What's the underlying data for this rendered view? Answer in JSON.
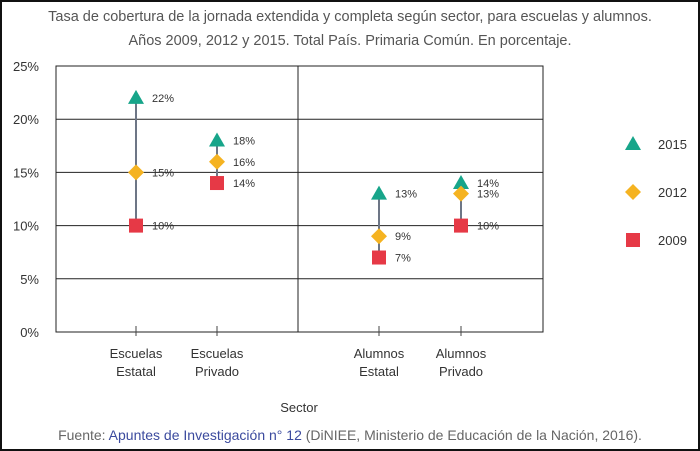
{
  "chart_data": {
    "type": "scatter",
    "title": "Tasa de cobertura de la jornada extendida y completa según sector, para escuelas y alumnos.",
    "subtitle": "Años 2009, 2012 y 2015. Total País. Primaria Común. En porcentaje.",
    "xlabel": "Sector",
    "ylabel": "",
    "ylim": [
      0,
      25
    ],
    "yticks": [
      "0%",
      "5%",
      "10%",
      "15%",
      "20%",
      "25%"
    ],
    "yticks_values": [
      0,
      5,
      10,
      15,
      20,
      25
    ],
    "grid": true,
    "legend_placement": "right",
    "categories": [
      [
        "Escuelas",
        "Estatal"
      ],
      [
        "Escuelas",
        "Privado"
      ],
      [
        "Alumnos",
        "Estatal"
      ],
      [
        "Alumnos",
        "Privado"
      ]
    ],
    "series": [
      {
        "name": "2015",
        "marker": "triangle",
        "color": "#17a58a",
        "values": [
          22,
          18,
          13,
          14
        ],
        "labels": [
          "22%",
          "18%",
          "13%",
          "14%"
        ]
      },
      {
        "name": "2012",
        "marker": "diamond",
        "color": "#f5b321",
        "values": [
          15,
          16,
          9,
          13
        ],
        "labels": [
          "15%",
          "16%",
          "9%",
          "13%"
        ]
      },
      {
        "name": "2009",
        "marker": "square",
        "color": "#e63946",
        "values": [
          10,
          14,
          7,
          10
        ],
        "labels": [
          "10%",
          "14%",
          "7%",
          "10%"
        ]
      }
    ]
  },
  "source": {
    "prefix": "Fuente: ",
    "link": "Apuntes de Investigación n° 12",
    "suffix": " (DiNIEE, Ministerio de Educación de la Nación, 2016)."
  }
}
